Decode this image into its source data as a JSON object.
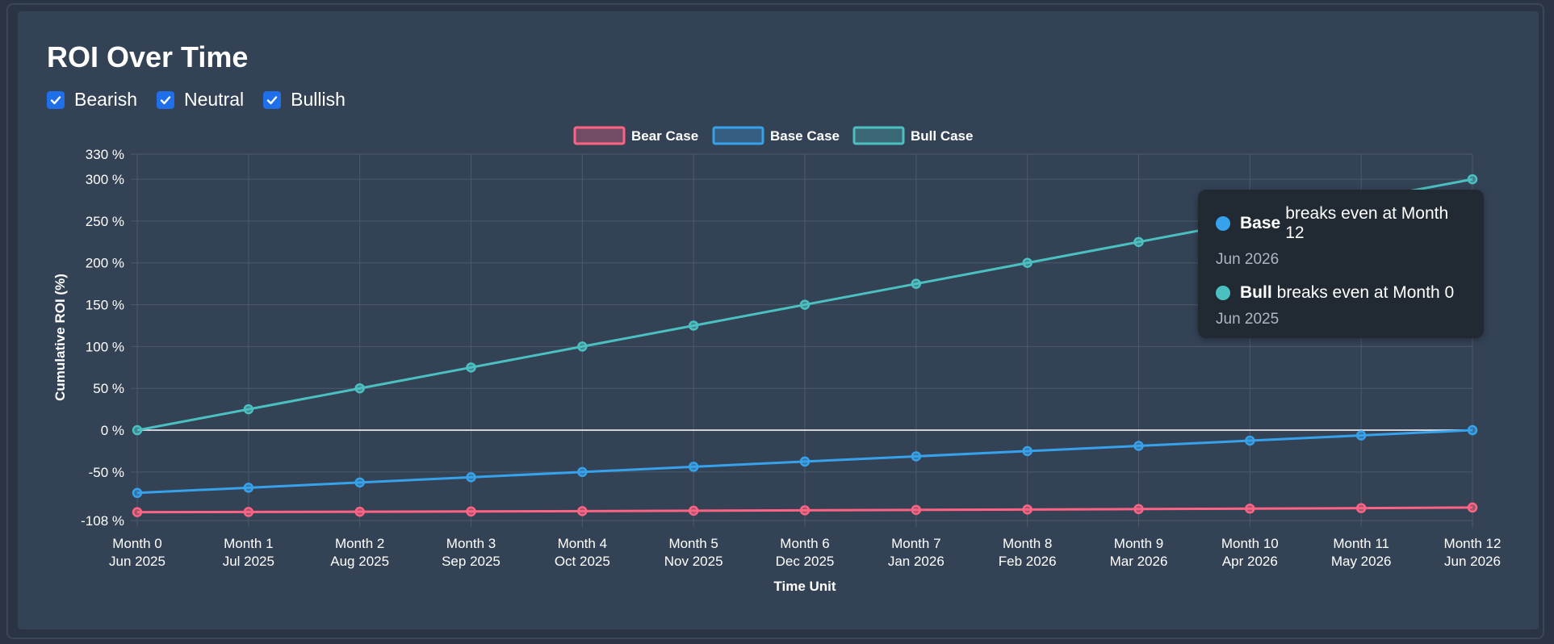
{
  "page": {
    "title": "ROI Over Time",
    "filters": [
      {
        "label": "Bearish",
        "checked": true
      },
      {
        "label": "Neutral",
        "checked": true
      },
      {
        "label": "Bullish",
        "checked": true
      }
    ]
  },
  "tooltip": {
    "items": [
      {
        "name": "Base",
        "text": "breaks even at Month 12",
        "date": "Jun 2026",
        "color": "#36a2eb"
      },
      {
        "name": "Bull",
        "text": "breaks even at Month 0",
        "date": "Jun 2025",
        "color": "#4bc0c0"
      }
    ]
  },
  "chart_data": {
    "type": "line",
    "xlabel": "Time Unit",
    "ylabel": "Cumulative ROI (%)",
    "ylim": [
      -108,
      330
    ],
    "yticks": [
      330,
      300,
      250,
      200,
      150,
      100,
      50,
      0,
      -50,
      -108
    ],
    "ytick_suffix": " %",
    "categories": [
      "Month 0",
      "Month 1",
      "Month 2",
      "Month 3",
      "Month 4",
      "Month 5",
      "Month 6",
      "Month 7",
      "Month 8",
      "Month 9",
      "Month 10",
      "Month 11",
      "Month 12"
    ],
    "category_dates": [
      "Jun 2025",
      "Jul 2025",
      "Aug 2025",
      "Sep 2025",
      "Oct 2025",
      "Nov 2025",
      "Dec 2025",
      "Jan 2026",
      "Feb 2026",
      "Mar 2026",
      "Apr 2026",
      "May 2026",
      "Jun 2026"
    ],
    "legend_position": "top",
    "grid": true,
    "zero_line_color": "#cfd4da",
    "series": [
      {
        "name": "Bear Case",
        "color": "#ff6384",
        "values": [
          -98,
          -97.8,
          -97.5,
          -97.2,
          -96.8,
          -96.3,
          -95.8,
          -95.3,
          -94.8,
          -94.3,
          -93.8,
          -93.2,
          -92.5
        ]
      },
      {
        "name": "Base Case",
        "color": "#36a2eb",
        "values": [
          -75,
          -68.75,
          -62.5,
          -56.25,
          -50,
          -43.75,
          -37.5,
          -31.25,
          -25,
          -18.75,
          -12.5,
          -6.25,
          0
        ]
      },
      {
        "name": "Bull Case",
        "color": "#4bc0c0",
        "values": [
          0,
          25,
          50,
          75,
          100,
          125,
          150,
          175,
          200,
          225,
          250,
          275,
          300
        ]
      }
    ]
  }
}
